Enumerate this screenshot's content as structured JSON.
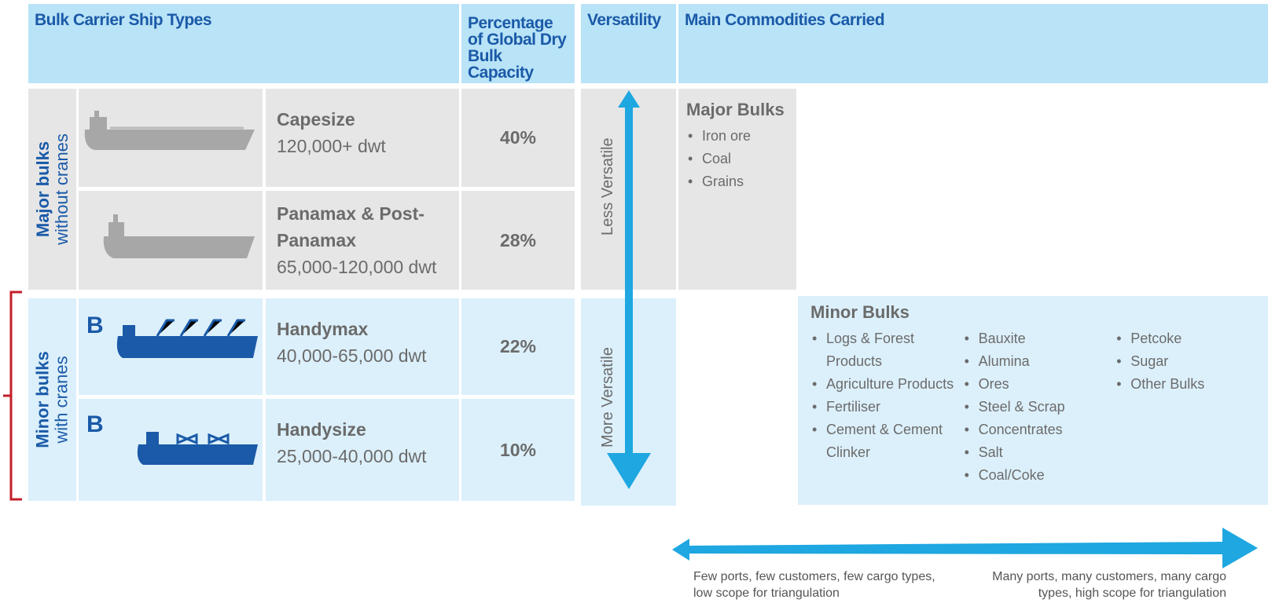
{
  "header": {
    "ship_types": "Bulk Carrier Ship Types",
    "percentage": "Percentage of Global Dry Bulk Capacity",
    "versatility": "Versatility",
    "commodities": "Main Commodities Carried"
  },
  "groups": [
    {
      "title": "Major bulks",
      "subtitle": "without cranes"
    },
    {
      "title": "Minor bulks",
      "subtitle": "with cranes"
    }
  ],
  "rows": [
    {
      "name": "Capesize",
      "size": "120,000+ dwt",
      "share": "40%"
    },
    {
      "name": "Panamax & Post-Panamax",
      "size": "65,000-120,000 dwt",
      "share": "28%"
    },
    {
      "name": "Handymax",
      "size": "40,000-65,000 dwt",
      "share": "22%"
    },
    {
      "name": "Handysize",
      "size": "25,000-40,000 dwt",
      "share": "10%"
    }
  ],
  "versatility": {
    "top": "Less Versatile",
    "bottom": "More Versatile"
  },
  "major_bulks": {
    "title": "Major Bulks",
    "items": [
      "Iron ore",
      "Coal",
      "Grains"
    ]
  },
  "minor_bulks": {
    "title": "Minor Bulks",
    "columns": [
      [
        "Logs & Forest Products",
        "Agriculture Products",
        "Fertiliser",
        "Cement & Cement Clinker"
      ],
      [
        "Bauxite",
        "Alumina",
        "Ores",
        "Steel & Scrap",
        "Concentrates",
        "Salt",
        "Coal/Coke"
      ],
      [
        "Petcoke",
        "Sugar",
        "Other Bulks"
      ]
    ]
  },
  "scale": {
    "left": "Few ports, few customers, few cargo types, low scope for triangulation",
    "right": "Many ports, many customers,  many cargo types, high scope for triangulation"
  }
}
